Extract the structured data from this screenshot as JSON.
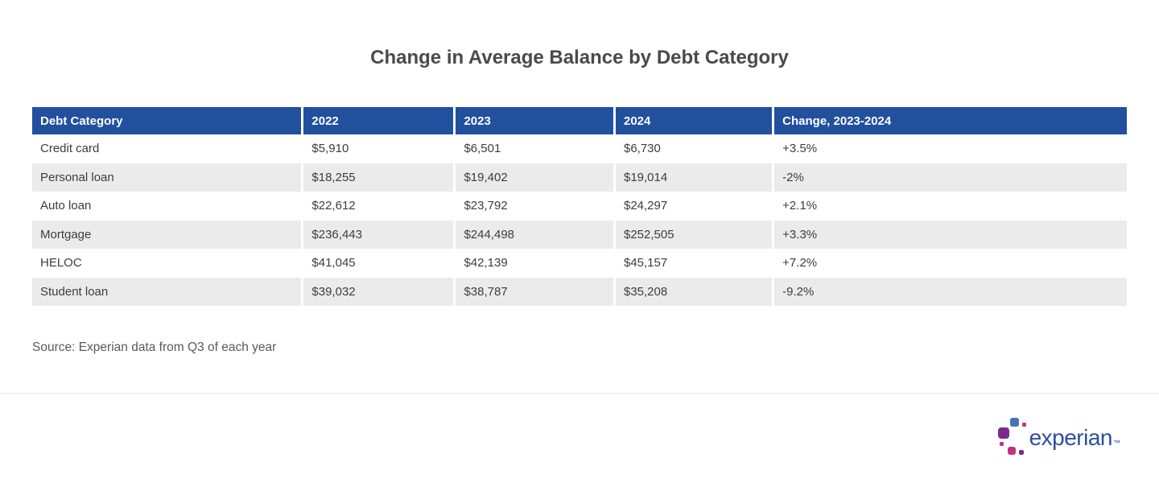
{
  "page": {
    "title": "Change in Average Balance by Debt Category",
    "source_note": "Source: Experian data from Q3 of each year"
  },
  "chart_data": {
    "type": "table",
    "title": "Change in Average Balance by Debt Category",
    "columns": [
      "Debt Category",
      "2022",
      "2023",
      "2024",
      "Change, 2023-2024"
    ],
    "rows": [
      [
        "Credit card",
        "$5,910",
        "$6,501",
        "$6,730",
        "+3.5%"
      ],
      [
        "Personal loan",
        "$18,255",
        "$19,402",
        "$19,014",
        "-2%"
      ],
      [
        "Auto loan",
        "$22,612",
        "$23,792",
        "$24,297",
        "+2.1%"
      ],
      [
        "Mortgage",
        "$236,443",
        "$244,498",
        "$252,505",
        "+3.3%"
      ],
      [
        "HELOC",
        "$41,045",
        "$42,139",
        "$45,157",
        "+7.2%"
      ],
      [
        "Student loan",
        "$39,032",
        "$38,787",
        "$35,208",
        "-9.2%"
      ]
    ],
    "layout": {
      "striped_rows": true,
      "header_style": "solid-blue",
      "column_alignment": [
        "left",
        "left",
        "left",
        "left",
        "left"
      ]
    }
  },
  "branding": {
    "logo_text": "experian",
    "trademark_symbol": "™"
  },
  "colors": {
    "header_bg": "#21509e",
    "header_text": "#ffffff",
    "row_stripe": "#ebebeb",
    "body_text": "#3d3d3d",
    "title_text": "#4a4a4a",
    "source_text": "#595959",
    "logo_text_color": "#2d4e9e",
    "logo_blue": "#4a72b2",
    "logo_purple": "#7b2b8d",
    "logo_magenta": "#c23387"
  }
}
